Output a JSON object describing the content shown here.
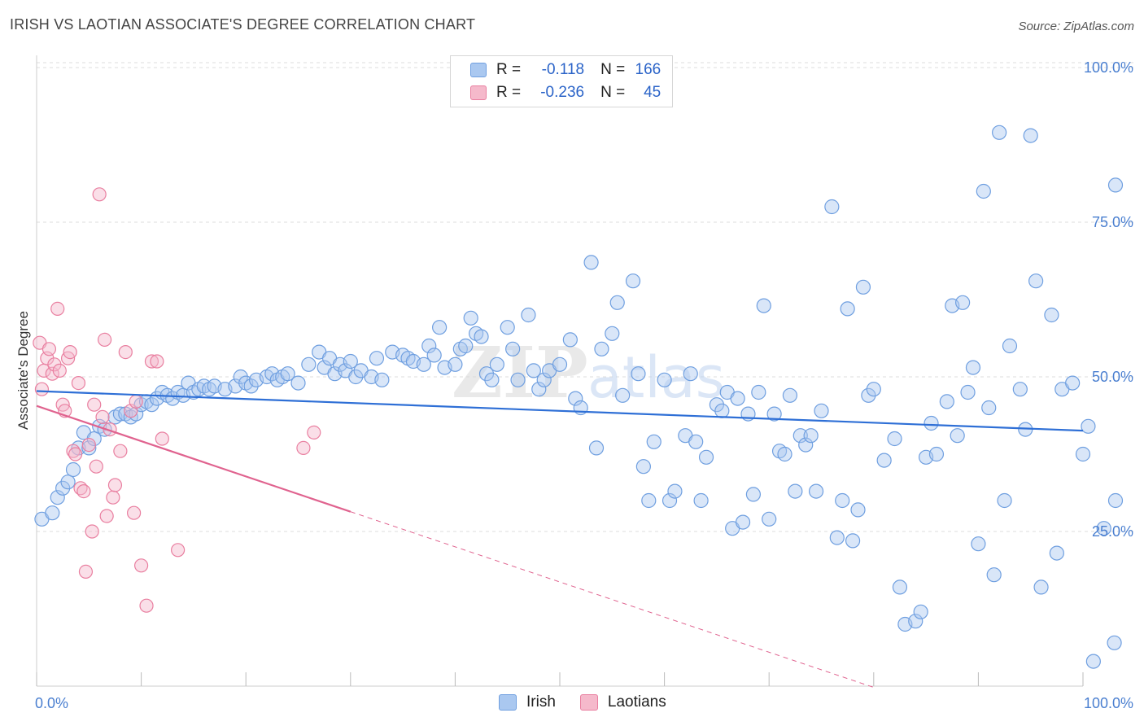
{
  "title": "IRISH VS LAOTIAN ASSOCIATE'S DEGREE CORRELATION CHART",
  "source": "Source: ZipAtlas.com",
  "watermark": "ZIPatlas",
  "chart_data": {
    "type": "scatter",
    "xlabel": "",
    "ylabel": "Associate's Degree",
    "xlim": [
      0,
      100
    ],
    "ylim": [
      0,
      100
    ],
    "x_tick_labels": [
      "0.0%",
      "100.0%"
    ],
    "y_ticks": [
      25,
      50,
      75,
      100
    ],
    "y_tick_labels": [
      "25.0%",
      "50.0%",
      "75.0%",
      "100.0%"
    ],
    "grid": true,
    "legend": [
      {
        "name": "Irish",
        "r_label": "R =",
        "r": "-0.118",
        "n_label": "N =",
        "n": "166",
        "color": "#6f9fe0",
        "fill": "#aac8f0"
      },
      {
        "name": "Laotians",
        "r_label": "R =",
        "r": "-0.236",
        "n_label": "N =",
        "n": "45",
        "color": "#e97fa0",
        "fill": "#f5b9cb"
      }
    ],
    "series": [
      {
        "name": "Irish",
        "color": "#6f9fe0",
        "trend": {
          "x0": 0,
          "y0": 47.7,
          "x1": 100,
          "y1": 41.3
        },
        "points": [
          [
            0.5,
            27
          ],
          [
            1.5,
            28
          ],
          [
            2,
            30.5
          ],
          [
            2.5,
            32
          ],
          [
            3,
            33
          ],
          [
            3.5,
            35
          ],
          [
            4,
            38.5
          ],
          [
            4.5,
            41
          ],
          [
            5,
            38.5
          ],
          [
            5.5,
            40
          ],
          [
            6,
            42
          ],
          [
            6.5,
            41.5
          ],
          [
            7.5,
            43.5
          ],
          [
            8,
            44
          ],
          [
            8.5,
            44
          ],
          [
            9,
            43.5
          ],
          [
            9.5,
            44
          ],
          [
            10,
            45.5
          ],
          [
            10.5,
            46
          ],
          [
            11,
            45.5
          ],
          [
            11.5,
            46.5
          ],
          [
            12,
            47.5
          ],
          [
            12.5,
            47
          ],
          [
            13,
            46.5
          ],
          [
            13.5,
            47.5
          ],
          [
            14,
            47
          ],
          [
            14.5,
            49
          ],
          [
            15,
            47.5
          ],
          [
            15.5,
            48
          ],
          [
            16,
            48.5
          ],
          [
            16.5,
            48
          ],
          [
            17,
            48.5
          ],
          [
            18,
            48
          ],
          [
            19,
            48.5
          ],
          [
            19.5,
            50
          ],
          [
            20,
            49
          ],
          [
            20.5,
            48.5
          ],
          [
            21,
            49.5
          ],
          [
            22,
            50
          ],
          [
            22.5,
            50.5
          ],
          [
            23,
            49.5
          ],
          [
            23.5,
            50
          ],
          [
            24,
            50.5
          ],
          [
            25,
            49
          ],
          [
            26,
            52
          ],
          [
            27,
            54
          ],
          [
            27.5,
            51.5
          ],
          [
            28,
            53
          ],
          [
            28.5,
            50.5
          ],
          [
            29,
            52
          ],
          [
            29.5,
            51
          ],
          [
            30,
            52.5
          ],
          [
            30.5,
            50
          ],
          [
            31,
            51
          ],
          [
            32,
            50
          ],
          [
            32.5,
            53
          ],
          [
            33,
            49.5
          ],
          [
            34,
            54
          ],
          [
            35,
            53.5
          ],
          [
            35.5,
            53
          ],
          [
            36,
            52.5
          ],
          [
            37,
            52
          ],
          [
            37.5,
            55
          ],
          [
            38,
            53.5
          ],
          [
            38.5,
            58
          ],
          [
            39,
            51.5
          ],
          [
            40,
            52
          ],
          [
            40.5,
            54.5
          ],
          [
            41,
            55
          ],
          [
            41.5,
            59.5
          ],
          [
            42,
            57
          ],
          [
            42.5,
            56.5
          ],
          [
            43,
            50.5
          ],
          [
            43.5,
            49.5
          ],
          [
            44,
            52
          ],
          [
            45,
            58
          ],
          [
            45.5,
            54.5
          ],
          [
            46,
            49.5
          ],
          [
            47,
            60
          ],
          [
            47.5,
            51
          ],
          [
            48,
            48
          ],
          [
            48.5,
            49.5
          ],
          [
            49,
            51
          ],
          [
            50,
            52
          ],
          [
            51,
            56
          ],
          [
            51.5,
            46.5
          ],
          [
            52,
            45
          ],
          [
            53,
            68.5
          ],
          [
            53.5,
            38.5
          ],
          [
            54,
            54.5
          ],
          [
            55,
            57
          ],
          [
            55.5,
            62
          ],
          [
            56,
            47
          ],
          [
            57,
            65.5
          ],
          [
            57.5,
            50.5
          ],
          [
            58,
            35.5
          ],
          [
            58.5,
            30
          ],
          [
            59,
            39.5
          ],
          [
            60,
            49.5
          ],
          [
            60.5,
            30
          ],
          [
            61,
            31.5
          ],
          [
            62,
            40.5
          ],
          [
            62.5,
            50.5
          ],
          [
            63,
            39.5
          ],
          [
            63.5,
            30
          ],
          [
            64,
            37
          ],
          [
            65,
            45.5
          ],
          [
            65.5,
            44.5
          ],
          [
            66,
            47.5
          ],
          [
            66.5,
            25.5
          ],
          [
            67,
            46.5
          ],
          [
            67.5,
            26.5
          ],
          [
            68,
            44
          ],
          [
            68.5,
            31
          ],
          [
            69,
            47.5
          ],
          [
            69.5,
            61.5
          ],
          [
            70,
            27
          ],
          [
            70.5,
            44
          ],
          [
            71,
            38
          ],
          [
            71.5,
            37.5
          ],
          [
            72,
            47
          ],
          [
            72.5,
            31.5
          ],
          [
            73,
            40.5
          ],
          [
            73.5,
            39
          ],
          [
            74,
            40.5
          ],
          [
            74.5,
            31.5
          ],
          [
            75,
            44.5
          ],
          [
            76,
            77.5
          ],
          [
            76.5,
            24
          ],
          [
            77,
            30
          ],
          [
            77.5,
            61
          ],
          [
            78,
            23.5
          ],
          [
            78.5,
            28.5
          ],
          [
            79,
            64.5
          ],
          [
            79.5,
            47
          ],
          [
            80,
            48
          ],
          [
            81,
            36.5
          ],
          [
            82,
            40
          ],
          [
            82.5,
            16
          ],
          [
            83,
            10
          ],
          [
            84,
            10.5
          ],
          [
            84.5,
            12
          ],
          [
            85,
            37
          ],
          [
            85.5,
            42.5
          ],
          [
            86,
            37.5
          ],
          [
            87,
            46
          ],
          [
            87.5,
            61.5
          ],
          [
            88,
            40.5
          ],
          [
            88.5,
            62
          ],
          [
            89,
            47.5
          ],
          [
            89.5,
            51.5
          ],
          [
            90,
            23
          ],
          [
            90.5,
            80
          ],
          [
            91,
            45
          ],
          [
            91.5,
            18
          ],
          [
            92,
            89.5
          ],
          [
            92.5,
            30
          ],
          [
            93,
            55
          ],
          [
            94,
            48
          ],
          [
            94.5,
            41.5
          ],
          [
            95,
            89
          ],
          [
            95.5,
            65.5
          ],
          [
            96,
            16
          ],
          [
            97,
            60
          ],
          [
            97.5,
            21.5
          ],
          [
            98,
            48
          ],
          [
            99,
            49
          ],
          [
            100,
            37.5
          ],
          [
            100.5,
            42
          ],
          [
            101,
            4
          ],
          [
            102,
            25.5
          ],
          [
            103,
            7
          ],
          [
            104,
            30
          ],
          [
            105,
            81
          ]
        ]
      },
      {
        "name": "Laotians",
        "color": "#e97fa0",
        "trend": {
          "x0": 0,
          "y0": 45.3,
          "x1": 30,
          "y1": 28.2
        },
        "trend_dashed": {
          "x0": 30,
          "y0": 28.2,
          "x1": 80,
          "y1": -0.2
        },
        "points": [
          [
            0.3,
            55.5
          ],
          [
            0.5,
            48
          ],
          [
            0.7,
            51
          ],
          [
            1,
            53
          ],
          [
            1.2,
            54.5
          ],
          [
            1.5,
            50.5
          ],
          [
            1.7,
            52
          ],
          [
            2,
            61
          ],
          [
            2.2,
            51
          ],
          [
            2.5,
            45.5
          ],
          [
            2.7,
            44.5
          ],
          [
            3,
            53
          ],
          [
            3.2,
            54
          ],
          [
            3.5,
            38
          ],
          [
            3.7,
            37.5
          ],
          [
            4,
            49
          ],
          [
            4.2,
            32
          ],
          [
            4.5,
            31.5
          ],
          [
            4.7,
            18.5
          ],
          [
            5,
            39
          ],
          [
            5.3,
            25
          ],
          [
            5.5,
            45.5
          ],
          [
            5.7,
            35.5
          ],
          [
            6,
            79.5
          ],
          [
            6.3,
            43.5
          ],
          [
            6.5,
            56
          ],
          [
            6.7,
            27.5
          ],
          [
            7,
            41.5
          ],
          [
            7.3,
            30.5
          ],
          [
            7.5,
            32.5
          ],
          [
            8,
            38
          ],
          [
            8.5,
            54
          ],
          [
            9,
            44.5
          ],
          [
            9.3,
            28
          ],
          [
            9.5,
            46
          ],
          [
            10,
            19.5
          ],
          [
            10.5,
            13
          ],
          [
            11,
            52.5
          ],
          [
            11.5,
            52.5
          ],
          [
            12,
            40
          ],
          [
            13.5,
            22
          ],
          [
            25.5,
            38.5
          ],
          [
            26.5,
            41
          ]
        ]
      }
    ]
  }
}
